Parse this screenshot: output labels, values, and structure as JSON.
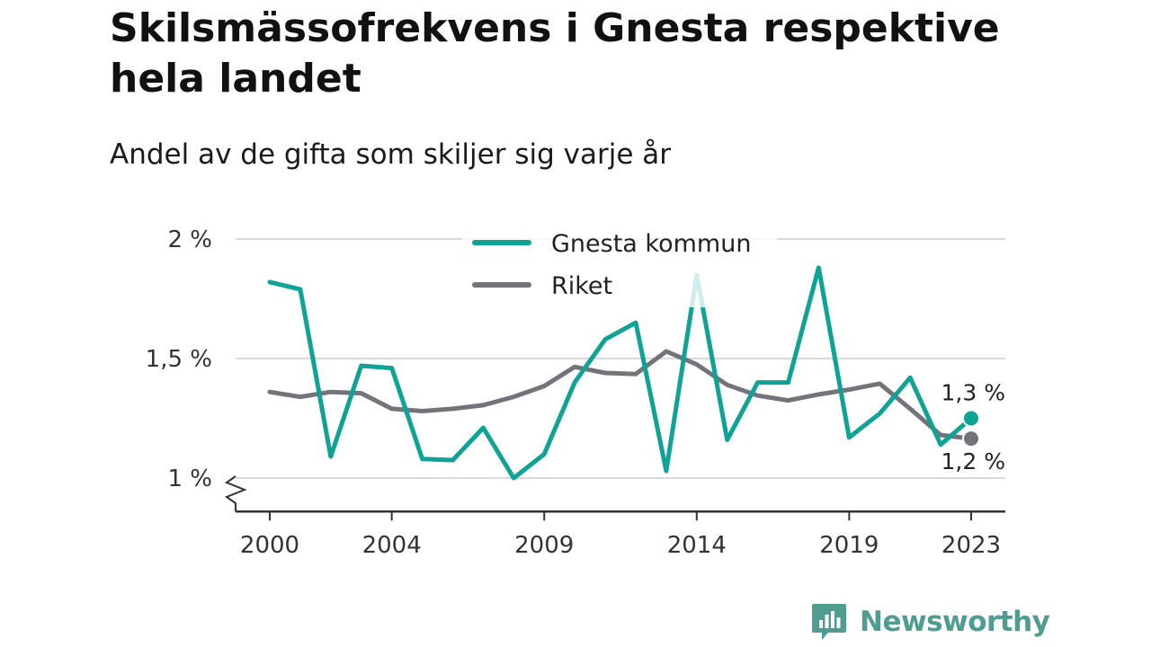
{
  "header": {
    "title": "Skilsmässofrekvens i Gnesta respektive hela landet",
    "subtitle": "Andel av de gifta som skiljer sig varje år"
  },
  "brand": {
    "name": "Newsworthy",
    "icon": "bar-chart-speech-bubble-icon",
    "color": "#4f9c91"
  },
  "chart_data": {
    "type": "line",
    "x": [
      2000,
      2001,
      2002,
      2003,
      2004,
      2005,
      2006,
      2007,
      2008,
      2009,
      2010,
      2011,
      2012,
      2013,
      2014,
      2015,
      2016,
      2017,
      2018,
      2019,
      2020,
      2021,
      2022,
      2023
    ],
    "x_tick_labels": [
      "2000",
      "2004",
      "2009",
      "2014",
      "2019",
      "2023"
    ],
    "x_ticks": [
      2000,
      2004,
      2009,
      2014,
      2019,
      2023
    ],
    "y_tick_labels": [
      "1 %",
      "1,5 %",
      "2 %"
    ],
    "y_ticks": [
      1.0,
      1.5,
      2.0
    ],
    "ylim": [
      0.86,
      2.0
    ],
    "y_axis_break": true,
    "grid": true,
    "legend_position": "top-center",
    "series": [
      {
        "name": "Gnesta kommun",
        "color": "#0fa396",
        "values": [
          1.82,
          1.79,
          1.09,
          1.47,
          1.46,
          1.08,
          1.075,
          1.21,
          1.0,
          1.1,
          1.4,
          1.58,
          1.65,
          1.03,
          1.85,
          1.16,
          1.4,
          1.4,
          1.88,
          1.17,
          1.27,
          1.42,
          1.14,
          1.25
        ],
        "end_label": "1,3 %"
      },
      {
        "name": "Riket",
        "color": "#75737a",
        "values": [
          1.36,
          1.34,
          1.36,
          1.355,
          1.29,
          1.28,
          1.29,
          1.305,
          1.34,
          1.385,
          1.465,
          1.44,
          1.435,
          1.53,
          1.475,
          1.39,
          1.345,
          1.325,
          1.35,
          1.37,
          1.395,
          1.29,
          1.18,
          1.165
        ],
        "end_label": "1,2 %"
      }
    ]
  }
}
